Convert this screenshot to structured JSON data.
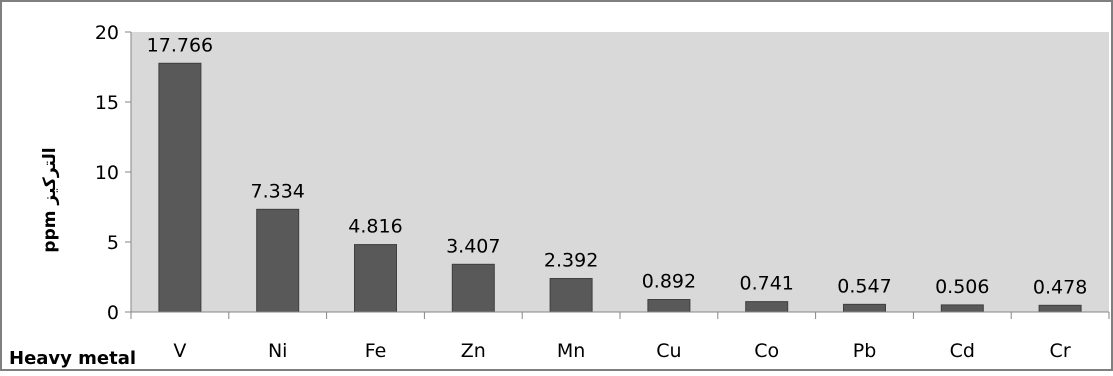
{
  "chart_data": {
    "type": "bar",
    "categories": [
      "V",
      "Ni",
      "Fe",
      "Zn",
      "Mn",
      "Cu",
      "Co",
      "Pb",
      "Cd",
      "Cr"
    ],
    "values": [
      17.766,
      7.334,
      4.816,
      3.407,
      2.392,
      0.892,
      0.741,
      0.547,
      0.506,
      0.478
    ],
    "data_labels": [
      "17.766",
      "7.334",
      "4.816",
      "3.407",
      "2.392",
      "0.892",
      "0.741",
      "0.547",
      "0.506",
      "0.478"
    ],
    "title": "",
    "xlabel": "Heavy metal",
    "ylabel": "ppm التركيز",
    "ylim": [
      0,
      20
    ],
    "yticks": [
      0,
      5,
      10,
      15,
      20
    ],
    "grid": false,
    "legend": "none",
    "colors": {
      "bar": "#595959",
      "bar_stroke": "#3f3f3f",
      "plot_bg": "#d9d9d9",
      "page_bg": "#ffffff",
      "axis": "#868686",
      "frame": "#7f7f7f"
    }
  }
}
